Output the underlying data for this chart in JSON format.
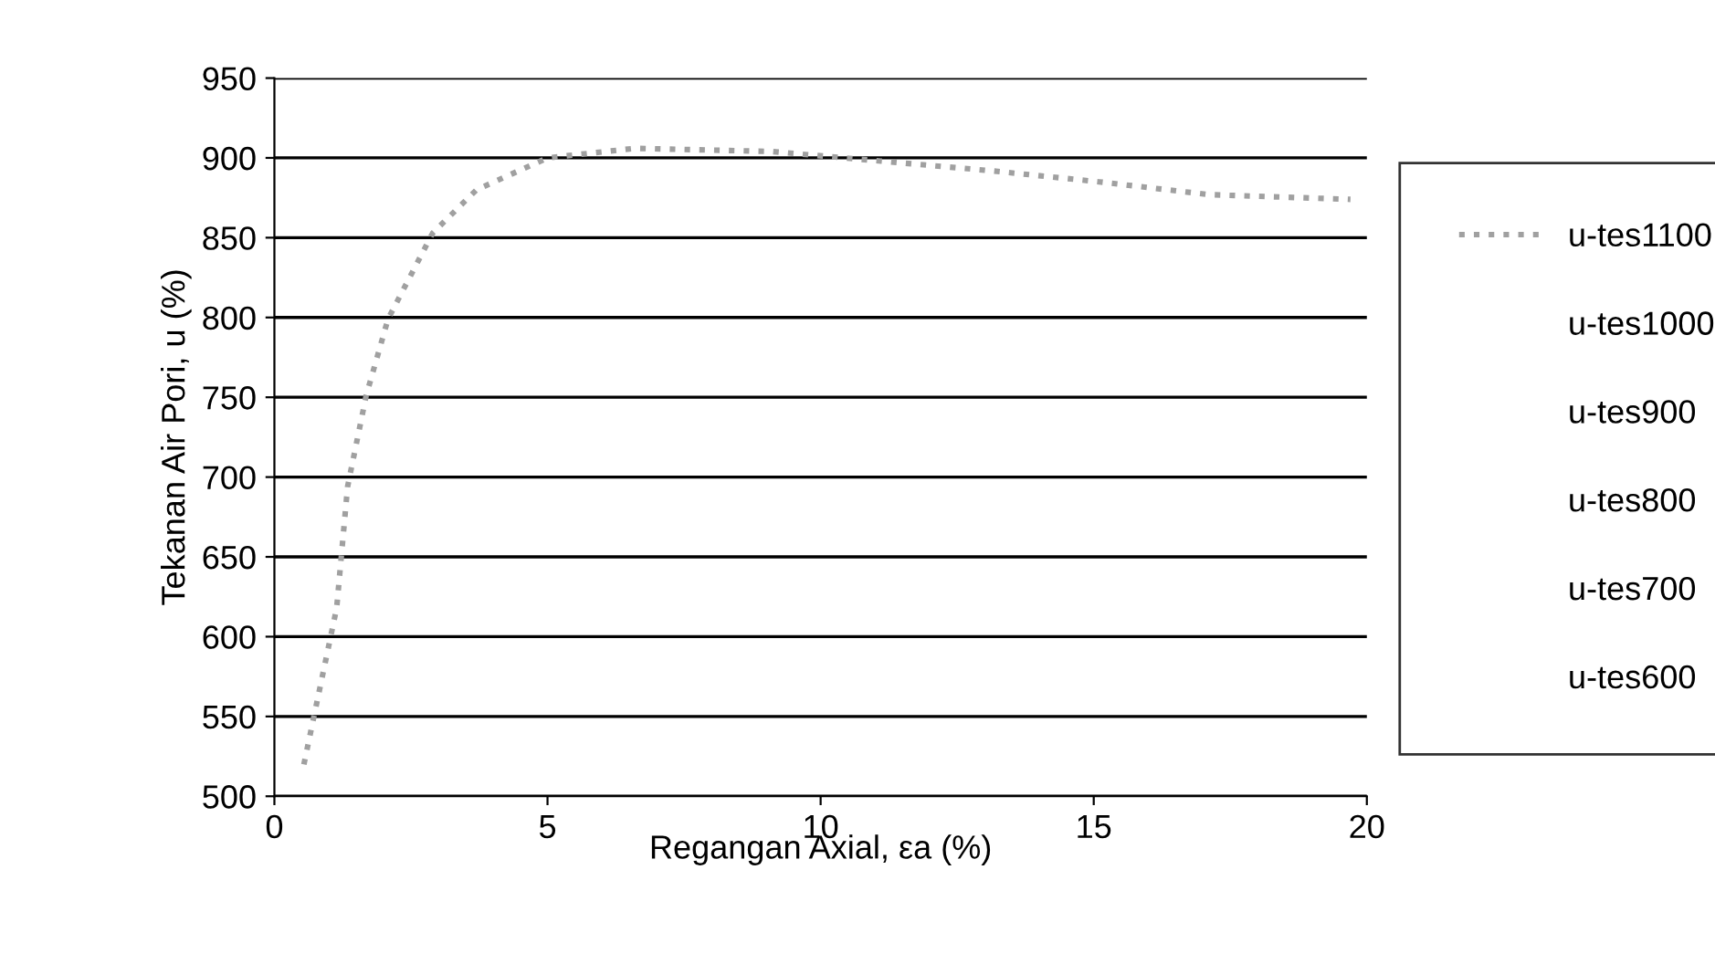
{
  "chart_data": {
    "type": "line",
    "xlabel": "Regangan Axial, εa (%)",
    "ylabel": "Tekanan Air Pori, u (%)",
    "xlim": [
      0,
      20
    ],
    "xticks": [
      0,
      5,
      10,
      15,
      20
    ],
    "ylim": [
      500,
      950
    ],
    "yticks": [
      500,
      550,
      600,
      650,
      700,
      750,
      800,
      850,
      900,
      950
    ],
    "grid": "y",
    "legend": "right",
    "line_style": "dotted",
    "series": [
      {
        "name": "u-tes1100",
        "color": "#a0a0a0",
        "x": [
          0.54,
          1.14,
          1.34,
          1.68,
          2.08,
          2.9,
          3.7,
          5.0,
          6.6,
          9.1,
          11.1,
          13.1,
          15.1,
          17.1,
          19.7
        ],
        "values": [
          520,
          618,
          694,
          751,
          799,
          853,
          880,
          900,
          906,
          904,
          898,
          892,
          885,
          877,
          874
        ]
      },
      {
        "name": "u-tes1000"
      },
      {
        "name": "u-tes900"
      },
      {
        "name": "u-tes800"
      },
      {
        "name": "u-tes700"
      },
      {
        "name": "u-tes600"
      }
    ]
  }
}
